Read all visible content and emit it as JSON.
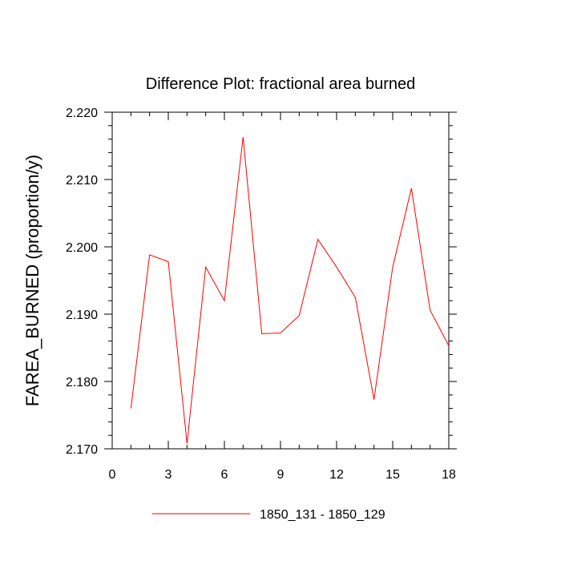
{
  "chart_data": {
    "type": "line",
    "title": "Difference Plot: fractional area burned",
    "xlabel": "",
    "ylabel": "FAREA_BURNED  (proportion/y)",
    "xlim": [
      0,
      18
    ],
    "ylim": [
      2.17,
      2.22
    ],
    "x_ticks": [
      0,
      3,
      6,
      9,
      12,
      15,
      18
    ],
    "x_tick_labels": [
      "0",
      "3",
      "6",
      "9",
      "12",
      "15",
      "18"
    ],
    "y_ticks": [
      2.17,
      2.18,
      2.19,
      2.2,
      2.21,
      2.22
    ],
    "y_tick_labels": [
      "2.170",
      "2.180",
      "2.190",
      "2.200",
      "2.210",
      "2.220"
    ],
    "grid": false,
    "legend_position": "bottom",
    "series": [
      {
        "name": "1850_131 - 1850_129",
        "color": "#ff0000",
        "x": [
          1,
          2,
          3,
          4,
          5,
          6,
          7,
          8,
          9,
          10,
          11,
          12,
          13,
          14,
          15,
          16,
          17,
          18
        ],
        "values": [
          2.176,
          2.1988,
          2.1978,
          2.1708,
          2.197,
          2.192,
          2.2163,
          2.1871,
          2.1872,
          2.1898,
          2.2011,
          2.197,
          2.1925,
          2.1773,
          2.197,
          2.2087,
          2.1906,
          2.1853
        ]
      }
    ]
  }
}
